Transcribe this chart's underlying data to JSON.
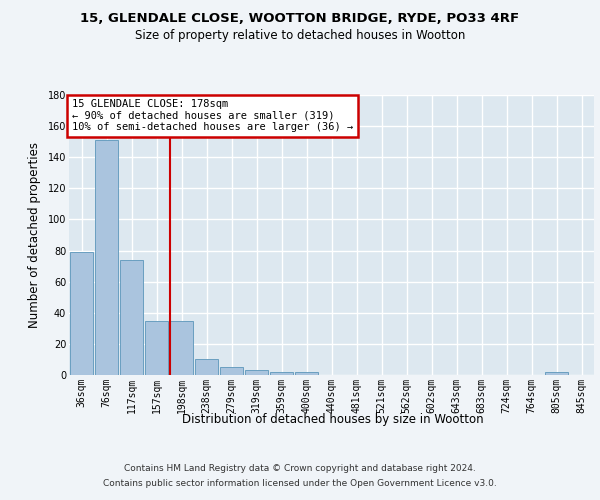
{
  "title1": "15, GLENDALE CLOSE, WOOTTON BRIDGE, RYDE, PO33 4RF",
  "title2": "Size of property relative to detached houses in Wootton",
  "xlabel": "Distribution of detached houses by size in Wootton",
  "ylabel": "Number of detached properties",
  "categories": [
    "36sqm",
    "76sqm",
    "117sqm",
    "157sqm",
    "198sqm",
    "238sqm",
    "279sqm",
    "319sqm",
    "359sqm",
    "400sqm",
    "440sqm",
    "481sqm",
    "521sqm",
    "562sqm",
    "602sqm",
    "643sqm",
    "683sqm",
    "724sqm",
    "764sqm",
    "805sqm",
    "845sqm"
  ],
  "values": [
    79,
    151,
    74,
    35,
    35,
    10,
    5,
    3,
    2,
    2,
    0,
    0,
    0,
    0,
    0,
    0,
    0,
    0,
    0,
    2,
    0
  ],
  "bar_color": "#aac4de",
  "bar_edgecolor": "#6a9fc0",
  "fig_bg_color": "#f0f4f8",
  "axes_bg_color": "#dde8f0",
  "grid_color": "#ffffff",
  "vline_color": "#cc0000",
  "vline_pos": 3.55,
  "annotation_text": "15 GLENDALE CLOSE: 178sqm\n← 90% of detached houses are smaller (319)\n10% of semi-detached houses are larger (36) →",
  "annotation_box_edgecolor": "#cc0000",
  "ylim": [
    0,
    180
  ],
  "yticks": [
    0,
    20,
    40,
    60,
    80,
    100,
    120,
    140,
    160,
    180
  ],
  "footnote1": "Contains HM Land Registry data © Crown copyright and database right 2024.",
  "footnote2": "Contains public sector information licensed under the Open Government Licence v3.0.",
  "title1_fontsize": 9.5,
  "title2_fontsize": 8.5,
  "ylabel_fontsize": 8.5,
  "xlabel_fontsize": 8.5,
  "tick_fontsize": 7.0,
  "annotation_fontsize": 7.5,
  "footnote_fontsize": 6.5
}
